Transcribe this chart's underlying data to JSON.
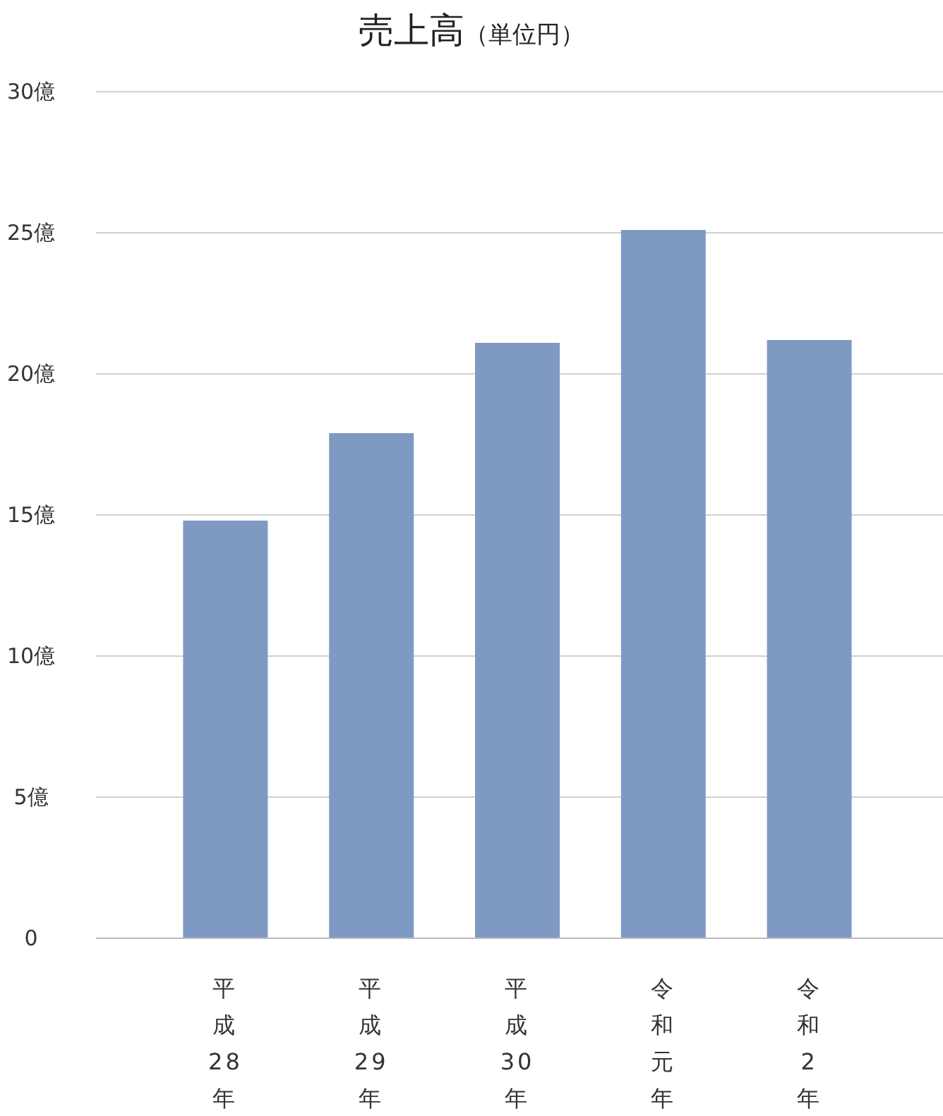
{
  "chart_data": {
    "type": "bar",
    "title": "売上高",
    "subtitle": "（単位円）",
    "categories": [
      "平成28年",
      "平成29年",
      "平成30年",
      "令和元年",
      "令和2年"
    ],
    "values": [
      14.8,
      17.9,
      21.1,
      25.1,
      21.2
    ],
    "color": "#7f9ac2",
    "ylim": [
      0,
      30
    ],
    "yticks": [
      0,
      {
        "value": 5,
        "label": "5億"
      },
      {
        "value": 10,
        "label": "10億"
      },
      {
        "value": 15,
        "label": "15億"
      },
      {
        "value": 20,
        "label": "20億"
      },
      {
        "value": 25,
        "label": "25億"
      },
      {
        "value": 30,
        "label": "30億"
      }
    ],
    "grid": "y"
  }
}
